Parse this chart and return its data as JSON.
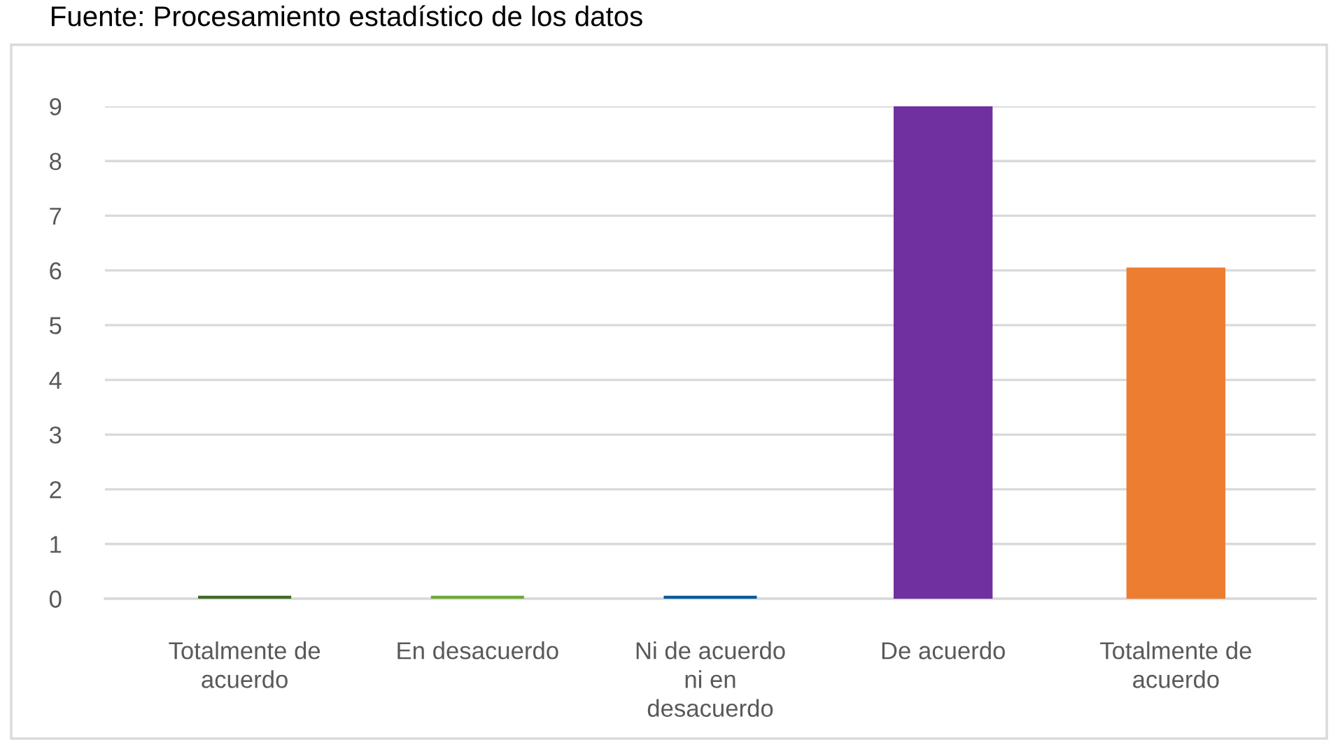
{
  "chart_data": {
    "type": "bar",
    "annotations": [
      "Fuente: Procesamiento estadístico de los datos"
    ],
    "categories": [
      "Totalmente de\nacuerdo",
      "En desacuerdo",
      "Ni de acuerdo\nni en\ndesacuerdo",
      "De acuerdo",
      "Totalmente de\nacuerdo"
    ],
    "values": [
      0,
      0,
      0,
      9,
      6
    ],
    "colors": [
      "#3e6b24",
      "#70a83c",
      "#0b5a9b",
      "#7030a0",
      "#ed7d31"
    ],
    "ylim": [
      0,
      9
    ],
    "yticks": [
      0,
      1,
      2,
      3,
      4,
      5,
      6,
      7,
      8,
      9
    ],
    "grid": "y"
  }
}
